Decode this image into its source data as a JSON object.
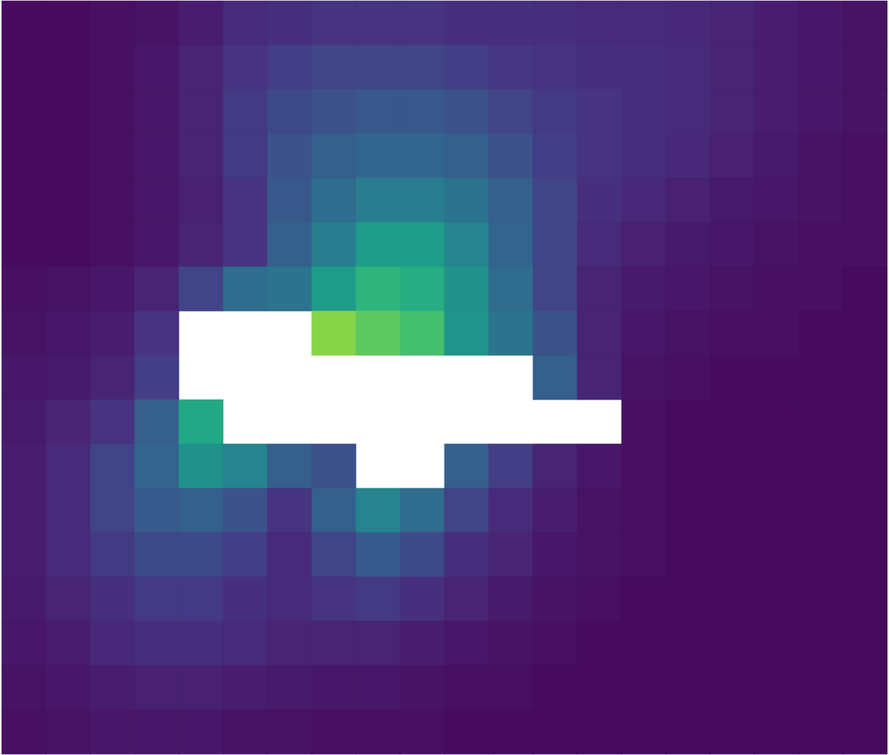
{
  "chart_data": {
    "type": "heatmap",
    "color": "viridis",
    "tick_labels": false,
    "zlim": [
      0,
      1
    ],
    "cells": [
      [
        0.03,
        0.03,
        0.04,
        0.05,
        0.08,
        0.12,
        0.14,
        0.15,
        0.15,
        0.15,
        0.14,
        0.14,
        0.13,
        0.12,
        0.12,
        0.11,
        0.1,
        0.08,
        0.06,
        0.05
      ],
      [
        0.03,
        0.03,
        0.04,
        0.06,
        0.1,
        0.15,
        0.18,
        0.2,
        0.2,
        0.2,
        0.18,
        0.16,
        0.15,
        0.14,
        0.13,
        0.12,
        0.1,
        0.08,
        0.06,
        0.05
      ],
      [
        0.03,
        0.03,
        0.04,
        0.06,
        0.1,
        0.17,
        0.22,
        0.25,
        0.27,
        0.27,
        0.25,
        0.2,
        0.17,
        0.15,
        0.13,
        0.12,
        0.1,
        0.08,
        0.06,
        0.05
      ],
      [
        0.03,
        0.03,
        0.04,
        0.06,
        0.1,
        0.17,
        0.25,
        0.3,
        0.33,
        0.33,
        0.3,
        0.25,
        0.18,
        0.15,
        0.13,
        0.11,
        0.09,
        0.07,
        0.05,
        0.04
      ],
      [
        0.03,
        0.03,
        0.04,
        0.06,
        0.09,
        0.15,
        0.27,
        0.35,
        0.42,
        0.42,
        0.38,
        0.3,
        0.2,
        0.14,
        0.11,
        0.09,
        0.07,
        0.06,
        0.05,
        0.04
      ],
      [
        0.03,
        0.03,
        0.04,
        0.06,
        0.1,
        0.15,
        0.3,
        0.42,
        0.55,
        0.55,
        0.45,
        0.32,
        0.2,
        0.12,
        0.09,
        0.07,
        0.06,
        0.05,
        0.04,
        0.04
      ],
      [
        0.04,
        0.05,
        0.06,
        0.1,
        0.2,
        0.35,
        0.38,
        0.55,
        0.65,
        0.62,
        0.5,
        0.35,
        0.2,
        0.1,
        0.07,
        0.06,
        0.05,
        0.04,
        0.04,
        0.03
      ],
      [
        0.05,
        0.06,
        0.08,
        0.15,
        null,
        null,
        null,
        0.82,
        0.75,
        0.7,
        0.52,
        0.38,
        0.25,
        0.1,
        0.06,
        0.05,
        0.04,
        0.04,
        0.03,
        0.03
      ],
      [
        0.06,
        0.07,
        0.1,
        0.18,
        null,
        null,
        null,
        null,
        null,
        null,
        null,
        null,
        0.3,
        0.1,
        0.05,
        0.04,
        0.03,
        0.03,
        0.03,
        0.03
      ],
      [
        0.07,
        0.1,
        0.15,
        0.3,
        0.6,
        null,
        null,
        null,
        null,
        null,
        null,
        null,
        null,
        null,
        0.04,
        0.03,
        0.03,
        0.03,
        0.03,
        0.03
      ],
      [
        0.08,
        0.12,
        0.2,
        0.32,
        0.5,
        0.45,
        0.3,
        0.25,
        null,
        null,
        0.3,
        0.18,
        0.1,
        0.06,
        0.04,
        0.03,
        0.03,
        0.03,
        0.03,
        0.03
      ],
      [
        0.08,
        0.12,
        0.2,
        0.28,
        0.3,
        0.25,
        0.15,
        0.3,
        0.45,
        0.35,
        0.2,
        0.12,
        0.08,
        0.05,
        0.04,
        0.03,
        0.03,
        0.03,
        0.03,
        0.03
      ],
      [
        0.08,
        0.12,
        0.17,
        0.22,
        0.22,
        0.18,
        0.12,
        0.2,
        0.28,
        0.22,
        0.14,
        0.1,
        0.06,
        0.05,
        0.04,
        0.03,
        0.03,
        0.03,
        0.03,
        0.03
      ],
      [
        0.07,
        0.1,
        0.14,
        0.17,
        0.17,
        0.14,
        0.12,
        0.15,
        0.17,
        0.14,
        0.1,
        0.07,
        0.05,
        0.04,
        0.03,
        0.03,
        0.03,
        0.03,
        0.03,
        0.03
      ],
      [
        0.06,
        0.08,
        0.11,
        0.13,
        0.13,
        0.12,
        0.1,
        0.1,
        0.1,
        0.08,
        0.06,
        0.05,
        0.04,
        0.03,
        0.03,
        0.03,
        0.03,
        0.03,
        0.03,
        0.03
      ],
      [
        0.05,
        0.06,
        0.08,
        0.09,
        0.09,
        0.08,
        0.07,
        0.06,
        0.06,
        0.05,
        0.04,
        0.04,
        0.03,
        0.03,
        0.03,
        0.03,
        0.03,
        0.03,
        0.03,
        0.03
      ],
      [
        0.04,
        0.05,
        0.06,
        0.06,
        0.06,
        0.05,
        0.05,
        0.04,
        0.04,
        0.04,
        0.03,
        0.03,
        0.03,
        0.03,
        0.03,
        0.03,
        0.03,
        0.03,
        0.03,
        0.03
      ]
    ]
  }
}
